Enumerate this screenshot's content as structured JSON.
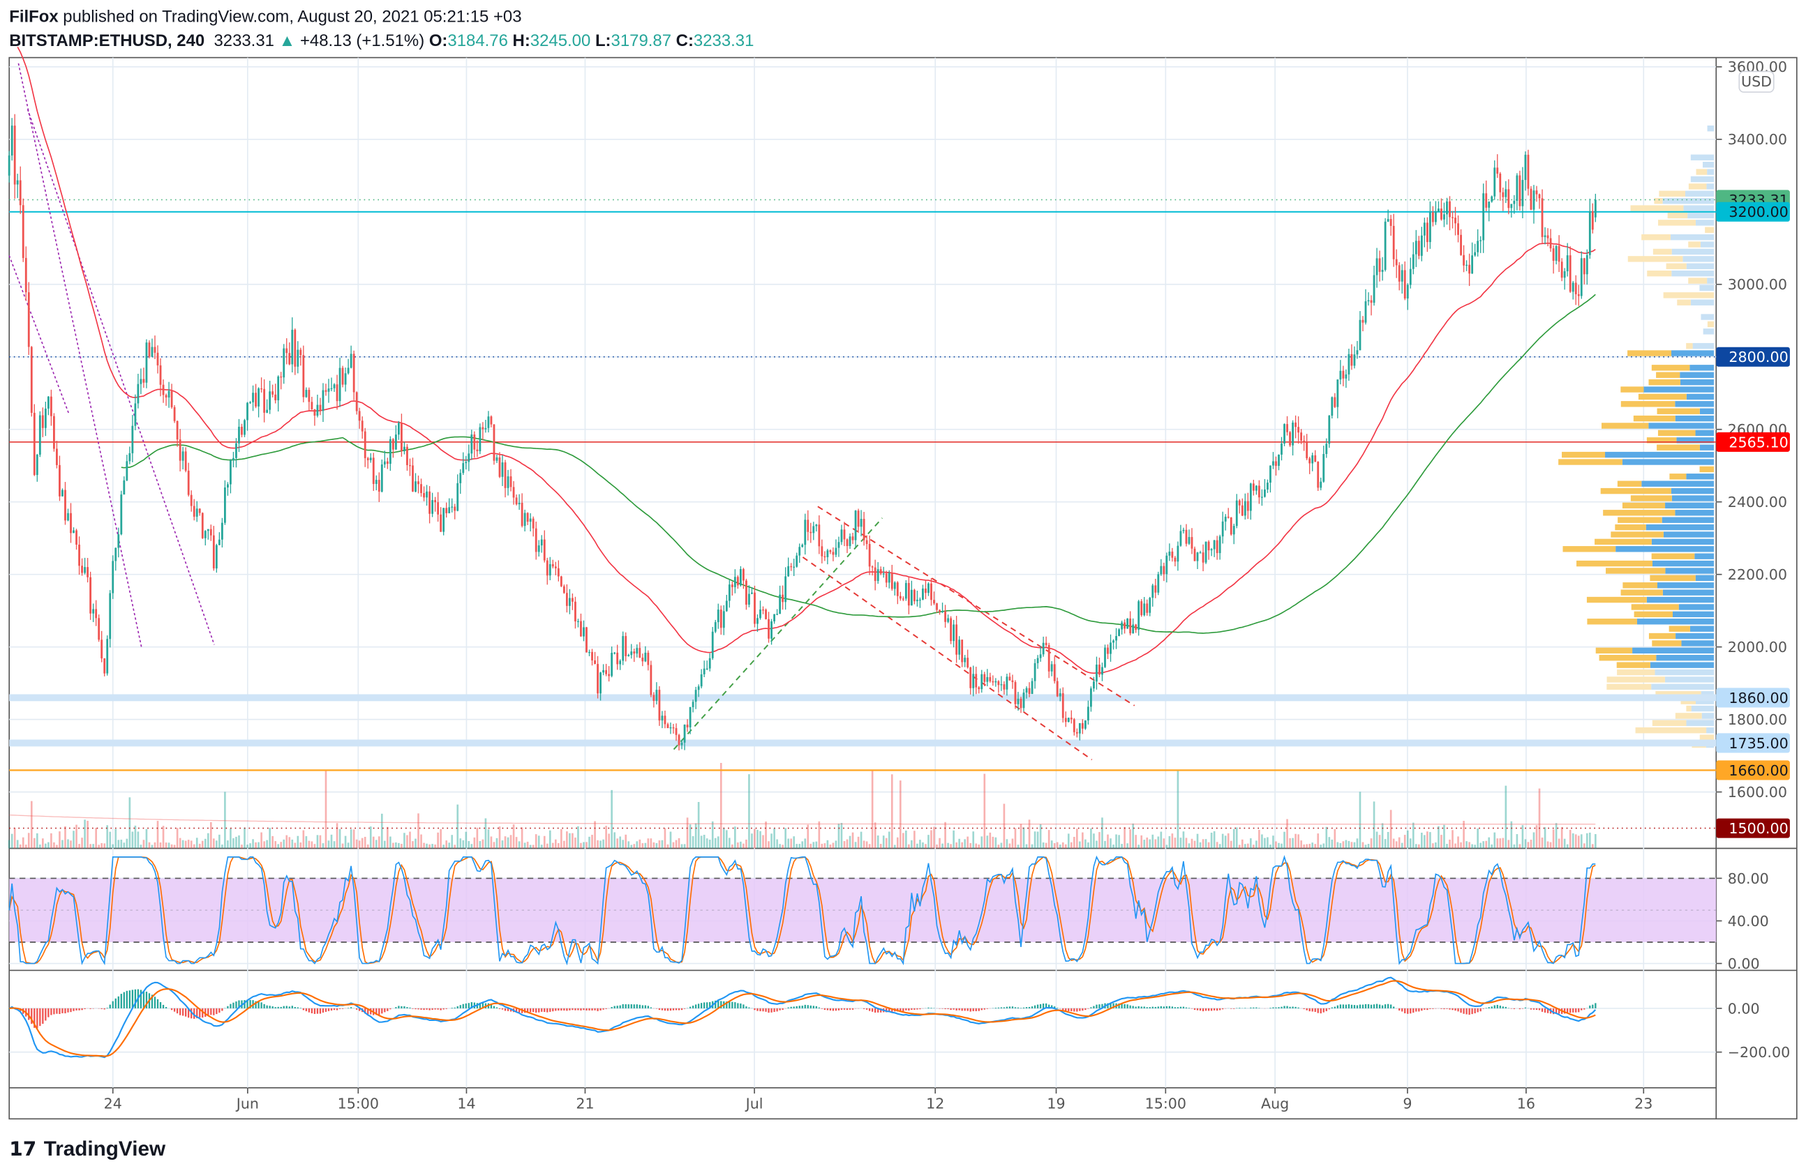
{
  "header": {
    "publisher": "FilFox",
    "published": "published on TradingView.com, August 20, 2021 05:21:15 +03",
    "symbol": "BITSTAMP:ETHUSD, 240",
    "last": "3233.31",
    "change": "+48.13 (+1.51%)",
    "o_label": "O:",
    "o": "3184.76",
    "h_label": "H:",
    "h": "3245.00",
    "l_label": "L:",
    "l": "3179.87",
    "c_label": "C:",
    "c": "3233.31"
  },
  "currency": "USD",
  "footer": {
    "logo": "TradingView"
  },
  "colors": {
    "up": "#26a69a",
    "down": "#ef5350",
    "ma_fast": "#f23645",
    "ma_slow": "#2e9b3c",
    "stoch_k": "#2196f3",
    "stoch_d": "#ff6d00",
    "stoch_band": "#e6c9f8",
    "vp_up": "#5aa9e6",
    "vp_down": "#f7c55a"
  },
  "chart_data": [
    {
      "type": "candlestick",
      "interval": "240",
      "price_path": [
        [
          "2021-05-17 20:00",
          3300
        ],
        [
          "2021-05-18 00:00",
          3400
        ],
        [
          "2021-05-18 16:00",
          3100
        ],
        [
          "2021-05-19 08:00",
          2500
        ],
        [
          "2021-05-20 00:00",
          2700
        ],
        [
          "2021-05-21 00:00",
          2400
        ],
        [
          "2021-05-22 08:00",
          2200
        ],
        [
          "2021-05-23 12:00",
          1950
        ],
        [
          "2021-05-24 04:00",
          2300
        ],
        [
          "2021-05-25 04:00",
          2600
        ],
        [
          "2021-05-26 04:00",
          2850
        ],
        [
          "2021-05-27 04:00",
          2700
        ],
        [
          "2021-05-28 04:00",
          2500
        ],
        [
          "2021-05-29 04:00",
          2350
        ],
        [
          "2021-05-30 00:00",
          2250
        ],
        [
          "2021-05-31 00:00",
          2500
        ],
        [
          "2021-06-01 00:00",
          2650
        ],
        [
          "2021-06-02 16:00",
          2700
        ],
        [
          "2021-06-03 16:00",
          2850
        ],
        [
          "2021-06-04 20:00",
          2650
        ],
        [
          "2021-06-06 04:00",
          2700
        ],
        [
          "2021-06-07 04:00",
          2800
        ],
        [
          "2021-06-07 20:00",
          2550
        ],
        [
          "2021-06-08 20:00",
          2450
        ],
        [
          "2021-06-09 20:00",
          2600
        ],
        [
          "2021-06-10 20:00",
          2450
        ],
        [
          "2021-06-12 08:00",
          2350
        ],
        [
          "2021-06-13 08:00",
          2400
        ],
        [
          "2021-06-14 08:00",
          2550
        ],
        [
          "2021-06-15 08:00",
          2600
        ],
        [
          "2021-06-16 08:00",
          2450
        ],
        [
          "2021-06-18 04:00",
          2300
        ],
        [
          "2021-06-19 04:00",
          2200
        ],
        [
          "2021-06-20 12:00",
          2100
        ],
        [
          "2021-06-21 20:00",
          1900
        ],
        [
          "2021-06-23 08:00",
          2000
        ],
        [
          "2021-06-24 16:00",
          1950
        ],
        [
          "2021-06-25 16:00",
          1800
        ],
        [
          "2021-06-26 16:00",
          1750
        ],
        [
          "2021-06-27 16:00",
          1850
        ],
        [
          "2021-06-28 20:00",
          2050
        ],
        [
          "2021-06-30 04:00",
          2200
        ],
        [
          "2021-07-01 04:00",
          2100
        ],
        [
          "2021-07-02 04:00",
          2050
        ],
        [
          "2021-07-03 12:00",
          2250
        ],
        [
          "2021-07-04 12:00",
          2350
        ],
        [
          "2021-07-05 12:00",
          2250
        ],
        [
          "2021-07-07 08:00",
          2350
        ],
        [
          "2021-07-08 08:00",
          2200
        ],
        [
          "2021-07-09 16:00",
          2150
        ],
        [
          "2021-07-11 20:00",
          2150
        ],
        [
          "2021-07-12 20:00",
          2050
        ],
        [
          "2021-07-14 04:00",
          1900
        ],
        [
          "2021-07-15 20:00",
          1900
        ],
        [
          "2021-07-17 04:00",
          1850
        ],
        [
          "2021-07-18 08:00",
          2000
        ],
        [
          "2021-07-19 08:00",
          1850
        ],
        [
          "2021-07-20 08:00",
          1760
        ],
        [
          "2021-07-21 00:00",
          1850
        ],
        [
          "2021-07-22 00:00",
          2000
        ],
        [
          "2021-07-23 08:00",
          2050
        ],
        [
          "2021-07-24 20:00",
          2150
        ],
        [
          "2021-07-26 12:00",
          2300
        ],
        [
          "2021-07-27 12:00",
          2250
        ],
        [
          "2021-07-28 20:00",
          2300
        ],
        [
          "2021-07-30 08:00",
          2400
        ],
        [
          "2021-07-31 16:00",
          2450
        ],
        [
          "2021-08-01 16:00",
          2600
        ],
        [
          "2021-08-02 16:00",
          2600
        ],
        [
          "2021-08-03 16:00",
          2450
        ],
        [
          "2021-08-04 16:00",
          2700
        ],
        [
          "2021-08-05 16:00",
          2800
        ],
        [
          "2021-08-06 16:00",
          2950
        ],
        [
          "2021-08-07 20:00",
          3150
        ],
        [
          "2021-08-08 20:00",
          3000
        ],
        [
          "2021-08-10 04:00",
          3150
        ],
        [
          "2021-08-11 16:00",
          3200
        ],
        [
          "2021-08-12 16:00",
          3050
        ],
        [
          "2021-08-14 00:00",
          3300
        ],
        [
          "2021-08-15 00:00",
          3200
        ],
        [
          "2021-08-16 00:00",
          3300
        ],
        [
          "2021-08-17 04:00",
          3150
        ],
        [
          "2021-08-18 04:00",
          3050
        ],
        [
          "2021-08-19 04:00",
          3000
        ],
        [
          "2021-08-20 04:00",
          3233.31
        ]
      ],
      "y_range": [
        1440,
        3620
      ],
      "y_ticks": [
        "3600.00",
        "3400.00",
        "3000.00",
        "2600.00",
        "2400.00",
        "2200.00",
        "2000.00",
        "1800.00",
        "1600.00"
      ],
      "x_ticks": [
        "24",
        "Jun",
        "15:00",
        "14",
        "21",
        "Jul",
        "12",
        "19",
        "15:00",
        "Aug",
        "9",
        "16",
        "23"
      ],
      "levels": [
        {
          "value": "3233.31",
          "color": "#4fb783",
          "text_color": "#131722"
        },
        {
          "value": "3200.00",
          "color": "#00bcd4",
          "text_color": "#131722"
        },
        {
          "value": "2800.00",
          "color": "#0d47a1",
          "text_color": "#ffffff"
        },
        {
          "value": "2565.10",
          "color": "#ff0000",
          "text_color": "#ffffff"
        },
        {
          "value": "1860.00",
          "color": "#bbdefb",
          "text_color": "#131722"
        },
        {
          "value": "1735.00",
          "color": "#bbdefb",
          "text_color": "#131722"
        },
        {
          "value": "1660.00",
          "color": "#ffa726",
          "text_color": "#131722"
        },
        {
          "value": "1500.00",
          "color": "#8b0000",
          "text_color": "#ffffff"
        }
      ],
      "grid": true
    },
    {
      "type": "line",
      "indicator": "Stoch RSI",
      "y_ticks": [
        "80.00",
        "40.00",
        "0.00"
      ],
      "band": [
        20,
        80
      ]
    },
    {
      "type": "bar+line",
      "indicator": "MACD",
      "y_ticks": [
        "0.00",
        "−200.00"
      ]
    }
  ]
}
